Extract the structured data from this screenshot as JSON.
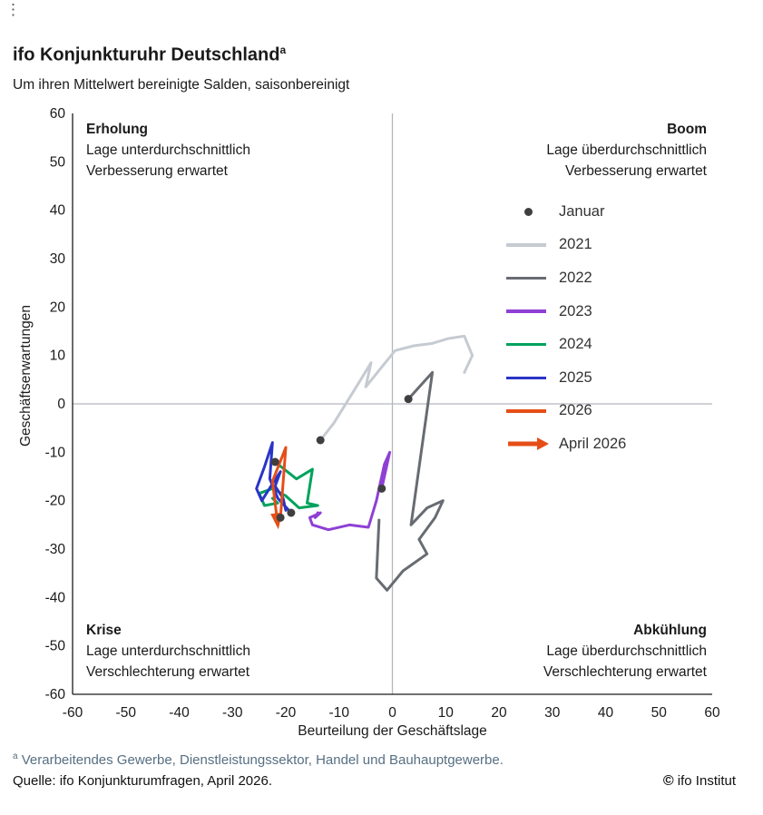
{
  "icons": {
    "overflow_menu": "⋮",
    "copyright": "©"
  },
  "header": {
    "title": "ifo Konjunkturuhr Deutschland",
    "title_superscript": "a",
    "subtitle": "Um ihren Mittelwert bereinigte Salden, saisonbereinigt"
  },
  "quadrants": {
    "top_left": {
      "name": "Erholung",
      "line1": "Lage unterdurchschnittlich",
      "line2": "Verbesserung erwartet"
    },
    "top_right": {
      "name": "Boom",
      "line1": "Lage überdurchschnittlich",
      "line2": "Verbesserung erwartet"
    },
    "bottom_left": {
      "name": "Krise",
      "line1": "Lage unterdurchschnittlich",
      "line2": "Verschlechterung erwartet"
    },
    "bottom_right": {
      "name": "Abkühlung",
      "line1": "Lage überdurchschnittlich",
      "line2": "Verschlechterung erwartet"
    }
  },
  "axes": {
    "x_label": "Beurteilung der Geschäftslage",
    "y_label": "Geschäftserwartungen",
    "x_ticks": [
      -60,
      -50,
      -40,
      -30,
      -20,
      -10,
      0,
      10,
      20,
      30,
      40,
      50,
      60
    ],
    "y_ticks": [
      60,
      50,
      40,
      30,
      20,
      10,
      0,
      -10,
      -20,
      -30,
      -40,
      -50,
      -60
    ]
  },
  "legend": [
    {
      "label": "Januar",
      "type": "dot",
      "color": "#3f3f3f"
    },
    {
      "label": "2021",
      "type": "line",
      "color": "#c6cbd2"
    },
    {
      "label": "2022",
      "type": "line",
      "color": "#686c72"
    },
    {
      "label": "2023",
      "type": "line",
      "color": "#8e40d5"
    },
    {
      "label": "2024",
      "type": "line",
      "color": "#00a25d"
    },
    {
      "label": "2025",
      "type": "line",
      "color": "#2a34c7"
    },
    {
      "label": "2026",
      "type": "line",
      "color": "#e64e18"
    },
    {
      "label": "April 2026",
      "type": "arrow",
      "color": "#e64e18"
    }
  ],
  "chart_data": {
    "type": "line",
    "title": "ifo Konjunkturuhr Deutschland",
    "subtitle": "Um ihren Mittelwert bereinigte Salden, saisonbereinigt",
    "xlabel": "Beurteilung der Geschäftslage",
    "ylabel": "Geschäftserwartungen",
    "xlim": [
      -60,
      60
    ],
    "ylim": [
      -60,
      60
    ],
    "grid": false,
    "legend_position": "inside-top-right",
    "colors": {
      "grid": "#b3b7bc",
      "axis": "#1a1a1a",
      "january_dot": "#3f3f3f"
    },
    "january_marker": "dark dot on the first (January) point of each yearly trajectory",
    "series": [
      {
        "name": "2021",
        "color": "#c6cbd2",
        "points": [
          [
            -13.5,
            -7.5
          ],
          [
            -11,
            -4
          ],
          [
            -6.5,
            4
          ],
          [
            -4,
            8.5
          ],
          [
            -5,
            3.5
          ],
          [
            0.5,
            11
          ],
          [
            4,
            12
          ],
          [
            7.5,
            12.5
          ],
          [
            10.5,
            13.5
          ],
          [
            13.5,
            14
          ],
          [
            15,
            10
          ],
          [
            13.5,
            6.5
          ]
        ]
      },
      {
        "name": "2022",
        "color": "#686c72",
        "points": [
          [
            3,
            1
          ],
          [
            7.5,
            6.5
          ],
          [
            3.5,
            -25
          ],
          [
            6.5,
            -21.5
          ],
          [
            9.5,
            -20
          ],
          [
            8,
            -23.5
          ],
          [
            5,
            -28
          ],
          [
            6.5,
            -31
          ],
          [
            2,
            -34.5
          ],
          [
            -1,
            -38.5
          ],
          [
            -3,
            -36
          ],
          [
            -2.5,
            -24
          ]
        ]
      },
      {
        "name": "2023",
        "color": "#8e40d5",
        "points": [
          [
            -2,
            -17.5
          ],
          [
            -0.5,
            -10
          ],
          [
            -1.5,
            -12.5
          ],
          [
            -3,
            -20
          ],
          [
            -4.5,
            -25.5
          ],
          [
            -8,
            -25
          ],
          [
            -12,
            -26
          ],
          [
            -15,
            -25
          ],
          [
            -15.5,
            -23.5
          ],
          [
            -13.5,
            -22.5
          ],
          [
            -14.5,
            -23.5
          ],
          [
            -14,
            -22.5
          ]
        ]
      },
      {
        "name": "2024",
        "color": "#00a25d",
        "points": [
          [
            -22,
            -12
          ],
          [
            -18,
            -15.5
          ],
          [
            -15,
            -13.5
          ],
          [
            -16,
            -20.5
          ],
          [
            -14,
            -21
          ],
          [
            -17.5,
            -21.5
          ],
          [
            -20,
            -19
          ],
          [
            -22.5,
            -17.5
          ],
          [
            -25,
            -18.5
          ],
          [
            -24,
            -21
          ],
          [
            -21.5,
            -20.5
          ],
          [
            -22.5,
            -19.5
          ]
        ]
      },
      {
        "name": "2025",
        "color": "#2a34c7",
        "points": [
          [
            -19,
            -22.5
          ],
          [
            -21.5,
            -19.5
          ],
          [
            -23,
            -15.5
          ],
          [
            -22.5,
            -8
          ],
          [
            -24,
            -13
          ],
          [
            -25.5,
            -17.5
          ],
          [
            -24.5,
            -20
          ],
          [
            -22.5,
            -16.5
          ],
          [
            -21,
            -14
          ],
          [
            -22,
            -17
          ],
          [
            -20.5,
            -19.5
          ],
          [
            -20,
            -22
          ]
        ]
      },
      {
        "name": "2026",
        "color": "#e64e18",
        "arrow_end": true,
        "points": [
          [
            -21,
            -23.5
          ],
          [
            -20,
            -9
          ],
          [
            -22.5,
            -16
          ],
          [
            -21.5,
            -25
          ]
        ]
      }
    ]
  },
  "footer": {
    "footnote_marker": "a",
    "footnote_text": " Verarbeitendes Gewerbe, Dienstleistungssektor, Handel und Bauhauptgewerbe.",
    "source": "Quelle: ifo Konjunkturumfragen, April 2026.",
    "credit": "ifo Institut"
  }
}
